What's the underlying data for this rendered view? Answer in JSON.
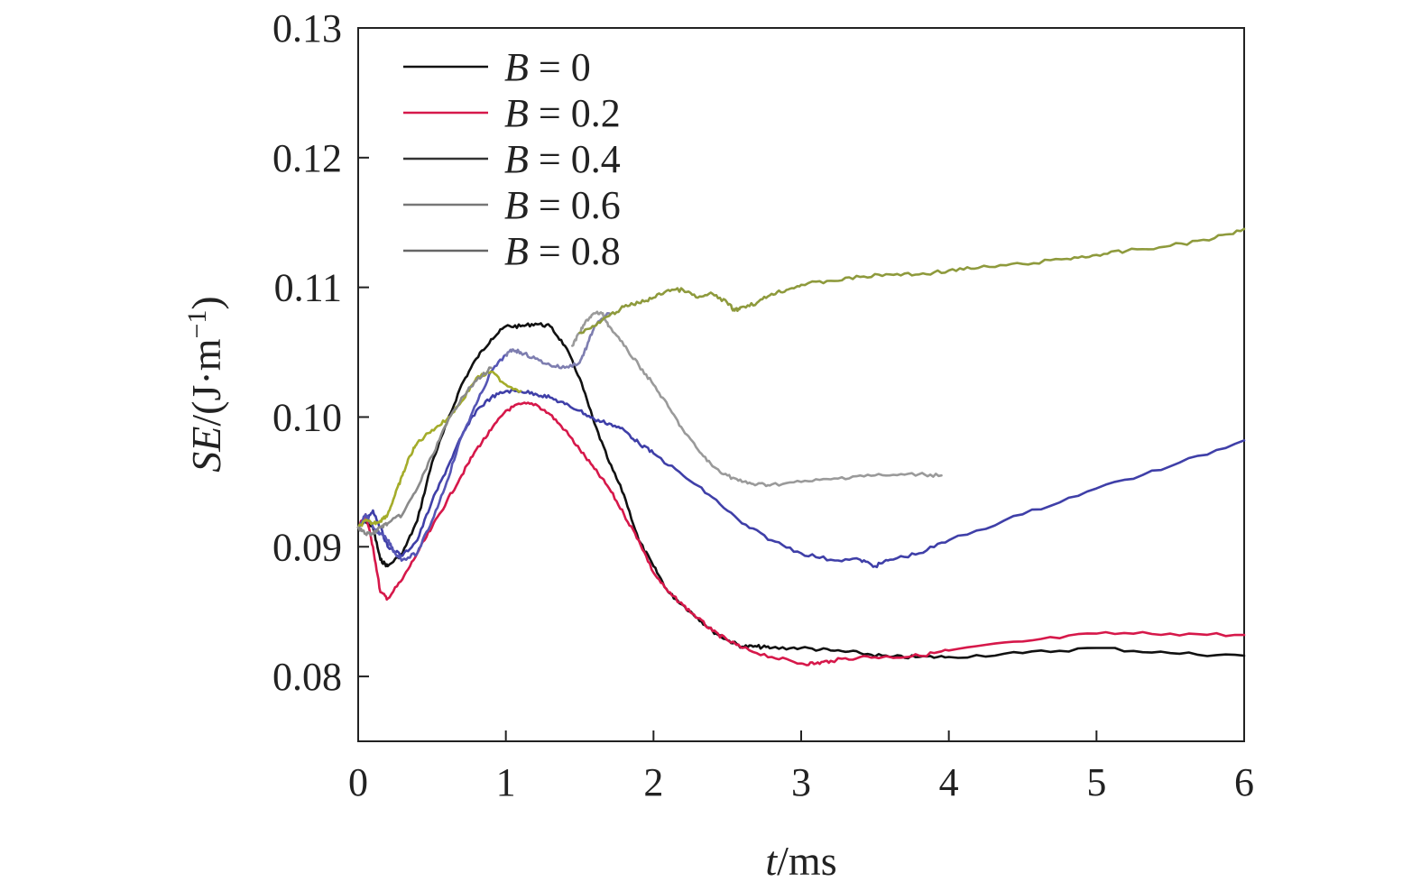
{
  "chart_data": {
    "type": "line",
    "xlabel": {
      "var": "t",
      "rest": "/ms"
    },
    "ylabel": {
      "var": "SE",
      "rest": "/(J·m",
      "sup": "−1",
      "close": ")"
    },
    "xlim": [
      0,
      6
    ],
    "ylim": [
      0.075,
      0.13
    ],
    "xticks": [
      0,
      1,
      2,
      3,
      4,
      5,
      6
    ],
    "xtick_labels": [
      "0",
      "1",
      "2",
      "3",
      "4",
      "5",
      "6"
    ],
    "yticks": [
      0.08,
      0.09,
      0.1,
      0.11,
      0.12,
      0.13
    ],
    "ytick_labels": [
      "0.08",
      "0.09",
      "0.10",
      "0.11",
      "0.12",
      "0.13"
    ],
    "grid": false,
    "legend_position": "top-left",
    "legend_var": "B",
    "series": [
      {
        "name": "B = 0",
        "label_value": "= 0",
        "legend_color": "#111111",
        "segments": [
          {
            "color": "#111111",
            "x": [
              0,
              0.05,
              0.1,
              0.15,
              0.2,
              0.3,
              0.4,
              0.5,
              0.6,
              0.7,
              0.8,
              0.9,
              1.0,
              1.1,
              1.2,
              1.3,
              1.4,
              1.5,
              1.6,
              1.7,
              1.8,
              1.9,
              2.0,
              2.1,
              2.2,
              2.3,
              2.4,
              2.5,
              2.6,
              2.7,
              2.8,
              3.0,
              3.2,
              3.4,
              3.6,
              3.8,
              4.0,
              4.5,
              5.0,
              5.5,
              6.0
            ],
            "y": [
              0.0915,
              0.092,
              0.0915,
              0.089,
              0.0885,
              0.0895,
              0.092,
              0.0965,
              0.0995,
              0.1025,
              0.1045,
              0.106,
              0.107,
              0.107,
              0.1072,
              0.107,
              0.1055,
              0.103,
              0.0995,
              0.0965,
              0.094,
              0.0905,
              0.0885,
              0.0865,
              0.0855,
              0.0845,
              0.0835,
              0.0828,
              0.0823,
              0.0823,
              0.0822,
              0.0822,
              0.082,
              0.0818,
              0.0815,
              0.0815,
              0.0815,
              0.0818,
              0.0822,
              0.0818,
              0.0816
            ]
          }
        ]
      },
      {
        "name": "B = 0.2",
        "label_value": "= 0.2",
        "legend_color": "#d6184a",
        "segments": [
          {
            "color": "#d6184a",
            "x": [
              0,
              0.05,
              0.1,
              0.15,
              0.2,
              0.3,
              0.4,
              0.5,
              0.6,
              0.7,
              0.8,
              0.9,
              1.0,
              1.1,
              1.2,
              1.3,
              1.4,
              1.5,
              1.6,
              1.7,
              1.8,
              1.9,
              2.0,
              2.1,
              2.2,
              2.3,
              2.4,
              2.5,
              2.6,
              2.8,
              3.0,
              3.1,
              3.2,
              3.4,
              3.6,
              3.8,
              4.0,
              4.5,
              5.0,
              5.5,
              6.0
            ],
            "y": [
              0.0915,
              0.0925,
              0.09,
              0.0865,
              0.086,
              0.0875,
              0.0895,
              0.0915,
              0.0935,
              0.0955,
              0.0975,
              0.099,
              0.1005,
              0.101,
              0.101,
              0.1002,
              0.099,
              0.0975,
              0.096,
              0.0945,
              0.0925,
              0.0905,
              0.088,
              0.0865,
              0.0855,
              0.0845,
              0.0835,
              0.0828,
              0.0822,
              0.0815,
              0.081,
              0.081,
              0.0812,
              0.0815,
              0.0815,
              0.0816,
              0.082,
              0.0827,
              0.0833,
              0.0833,
              0.0832
            ]
          }
        ]
      },
      {
        "name": "B = 0.4",
        "label_value": "= 0.4",
        "legend_color": "#333333",
        "segments": [
          {
            "color": "#3f3fa8",
            "x": [
              0,
              0.05,
              0.1,
              0.15,
              0.2,
              0.3,
              0.4,
              0.5,
              0.6,
              0.7,
              0.8,
              0.9,
              1.0,
              1.1,
              1.2,
              1.3,
              1.4,
              1.5,
              1.6,
              1.7,
              1.8,
              1.9,
              2.0,
              2.2,
              2.4,
              2.6,
              2.8,
              3.0,
              3.2,
              3.4,
              3.5,
              3.6,
              3.8,
              4.0,
              4.5,
              5.0,
              5.5,
              6.0
            ],
            "y": [
              0.0915,
              0.092,
              0.0928,
              0.0915,
              0.09,
              0.0893,
              0.0905,
              0.0935,
              0.096,
              0.0985,
              0.1005,
              0.1015,
              0.102,
              0.102,
              0.1018,
              0.1015,
              0.101,
              0.1005,
              0.0998,
              0.0995,
              0.099,
              0.098,
              0.0972,
              0.0955,
              0.0938,
              0.0918,
              0.0905,
              0.0895,
              0.089,
              0.089,
              0.0885,
              0.089,
              0.0895,
              0.0905,
              0.0925,
              0.0945,
              0.0962,
              0.0982
            ]
          }
        ]
      },
      {
        "name": "B = 0.6",
        "label_value": "= 0.6",
        "legend_color": "#777777",
        "segments": [
          {
            "color": "#5555b5",
            "x": [
              0,
              0.05,
              0.1,
              0.15,
              0.2,
              0.25,
              0.3,
              0.4,
              0.5,
              0.6,
              0.7,
              0.8,
              0.9,
              1.0
            ],
            "y": [
              0.0915,
              0.0925,
              0.0915,
              0.091,
              0.0905,
              0.0895,
              0.089,
              0.0895,
              0.092,
              0.095,
              0.0985,
              0.101,
              0.1035,
              0.1048
            ]
          },
          {
            "color": "#7e7eb0",
            "x": [
              1.0,
              1.05,
              1.1,
              1.2,
              1.3,
              1.4,
              1.5,
              1.55,
              1.6,
              1.7
            ],
            "y": [
              0.1048,
              0.1052,
              0.105,
              0.1045,
              0.104,
              0.1038,
              0.1042,
              0.1055,
              0.107,
              0.108
            ]
          }
        ]
      },
      {
        "name": "B = 0.8",
        "label_value": "= 0.8",
        "legend_color": "#666666",
        "segments": [
          {
            "color": "#a4ac2a",
            "x": [
              0,
              0.05,
              0.1,
              0.15,
              0.2,
              0.25,
              0.3,
              0.35,
              0.4,
              0.5,
              0.6,
              0.7,
              0.8,
              0.9,
              1.0,
              1.1
            ],
            "y": [
              0.0915,
              0.092,
              0.0918,
              0.092,
              0.0925,
              0.094,
              0.0955,
              0.097,
              0.098,
              0.099,
              0.0998,
              0.1012,
              0.103,
              0.1035,
              0.1025,
              0.102
            ]
          },
          {
            "color": "#8a8a8a",
            "x": [
              0,
              0.05,
              0.1,
              0.15,
              0.2,
              0.3,
              0.4,
              0.5,
              0.6,
              0.7,
              0.8,
              0.9
            ],
            "y": [
              0.0915,
              0.091,
              0.091,
              0.0915,
              0.0918,
              0.0925,
              0.0945,
              0.097,
              0.0995,
              0.1015,
              0.1028,
              0.1038
            ]
          },
          {
            "color": "#9a9a9a",
            "x": [
              1.45,
              1.5,
              1.55,
              1.6,
              1.65,
              1.7,
              1.8,
              1.9,
              2.0,
              2.1,
              2.2,
              2.3,
              2.4,
              2.5,
              2.6,
              2.7,
              2.8,
              3.0,
              3.2,
              3.4,
              3.6,
              3.8,
              3.95
            ],
            "y": [
              0.1055,
              0.1065,
              0.1075,
              0.108,
              0.108,
              0.107,
              0.1055,
              0.104,
              0.1025,
              0.1008,
              0.099,
              0.0975,
              0.0962,
              0.0955,
              0.095,
              0.0948,
              0.0948,
              0.095,
              0.0952,
              0.0955,
              0.0955,
              0.0956,
              0.0955
            ]
          },
          {
            "color": "#8e9a3c",
            "x": [
              1.5,
              1.6,
              1.7,
              1.8,
              1.9,
              2.0,
              2.1,
              2.2,
              2.3,
              2.4,
              2.5,
              2.55,
              2.6,
              2.7,
              2.8,
              2.9,
              3.0,
              3.2,
              3.4,
              3.6,
              3.8,
              4.0,
              4.2,
              4.5,
              4.8,
              5.0,
              5.2,
              5.5,
              5.8,
              6.0
            ],
            "y": [
              0.1065,
              0.107,
              0.1078,
              0.1085,
              0.1088,
              0.1092,
              0.1098,
              0.1098,
              0.1092,
              0.1095,
              0.1088,
              0.1082,
              0.1085,
              0.1088,
              0.1095,
              0.1098,
              0.1102,
              0.1105,
              0.1108,
              0.111,
              0.111,
              0.1113,
              0.1115,
              0.1118,
              0.1122,
              0.1125,
              0.1128,
              0.1132,
              0.1138,
              0.1145
            ]
          }
        ]
      }
    ]
  }
}
